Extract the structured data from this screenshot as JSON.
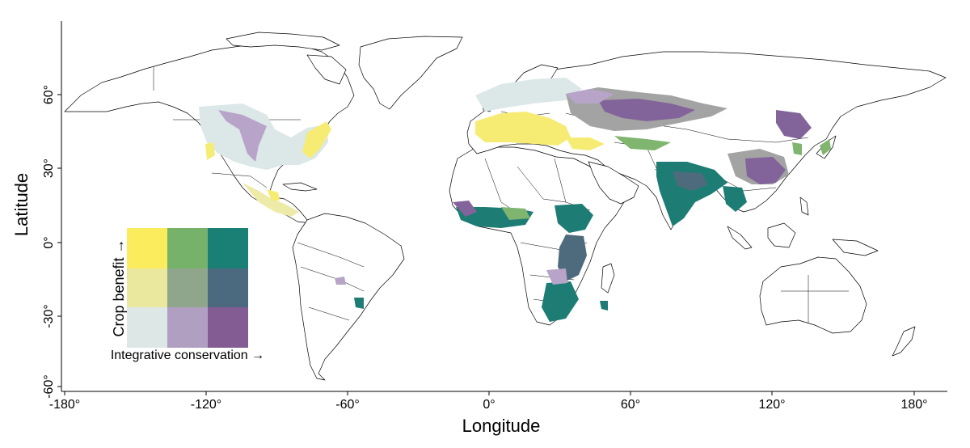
{
  "axes": {
    "x_label": "Longitude",
    "y_label": "Latitude",
    "x_ticks": [
      {
        "value": -180,
        "label": "-180°"
      },
      {
        "value": -120,
        "label": "-120°"
      },
      {
        "value": -60,
        "label": "-60°"
      },
      {
        "value": 0,
        "label": "0°"
      },
      {
        "value": 60,
        "label": "60°"
      },
      {
        "value": 120,
        "label": "120°"
      },
      {
        "value": 180,
        "label": "180°"
      }
    ],
    "y_ticks": [
      {
        "value": 60,
        "label": "60°"
      },
      {
        "value": 30,
        "label": "30°"
      },
      {
        "value": 0,
        "label": "0°"
      },
      {
        "value": -30,
        "label": "-30°"
      },
      {
        "value": -60,
        "label": "-60°"
      }
    ]
  },
  "legend": {
    "y_title": "Crop benefit →",
    "x_title": "Integrative conservation →",
    "colors": [
      [
        "#fbec5d",
        "#76b26a",
        "#1a7f74"
      ],
      [
        "#eae89e",
        "#8fa58c",
        "#4b6a7f"
      ],
      [
        "#dde8e6",
        "#b09fc1",
        "#835c94"
      ]
    ]
  },
  "palette": {
    "yellow": "#f6ec74",
    "lightyellow": "#eeeaa8",
    "green": "#7fb56e",
    "teal": "#1d7d74",
    "slate": "#4d6b7c",
    "grey": "#a3a3a3",
    "lightblue": "#dce7e8",
    "lilac": "#b7a4c8",
    "purple": "#83649a"
  }
}
